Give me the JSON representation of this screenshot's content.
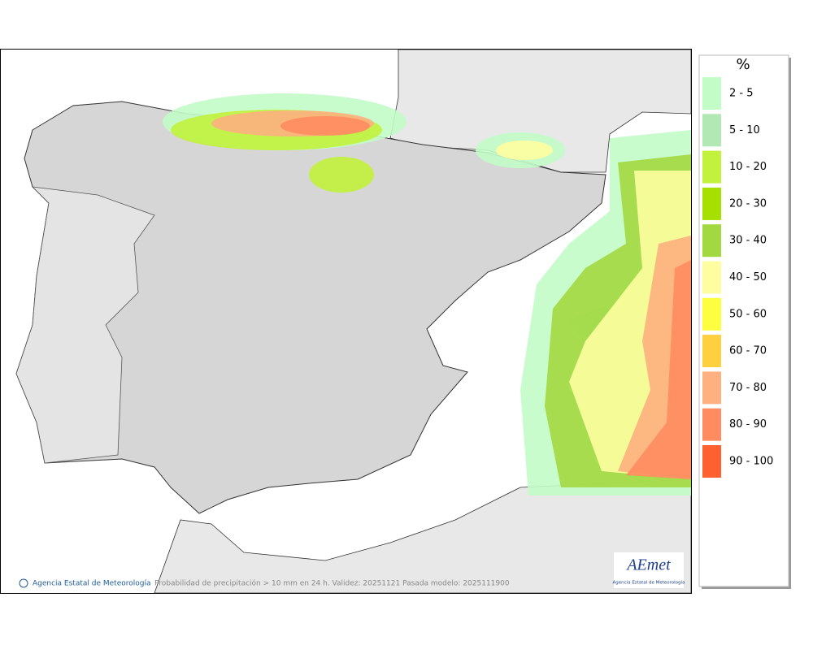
{
  "legend": {
    "title": "%",
    "items": [
      {
        "label": "2 - 5",
        "color": "#c2fcc6"
      },
      {
        "label": "5 - 10",
        "color": "#b2e8b4"
      },
      {
        "label": "10 - 20",
        "color": "#c2f23c"
      },
      {
        "label": "20 - 30",
        "color": "#a6e000"
      },
      {
        "label": "30 - 40",
        "color": "#a2d840"
      },
      {
        "label": "40 - 50",
        "color": "#fefea0"
      },
      {
        "label": "50 - 60",
        "color": "#fefe40"
      },
      {
        "label": "60 - 70",
        "color": "#fed040"
      },
      {
        "label": "70 - 80",
        "color": "#feb080"
      },
      {
        "label": "80 - 90",
        "color": "#fe8c60"
      },
      {
        "label": "90 - 100",
        "color": "#fe6030"
      }
    ]
  },
  "footer": {
    "agency": "Agencia Estatal de Meteorología",
    "caption": "Probabilidad de precipitación > 10 mm en 24 h. Validez: 20251121 Pasada modelo: 2025111900"
  },
  "logo": {
    "name": "AEmet",
    "subtitle": "Agencia Estatal de Meteorología"
  }
}
